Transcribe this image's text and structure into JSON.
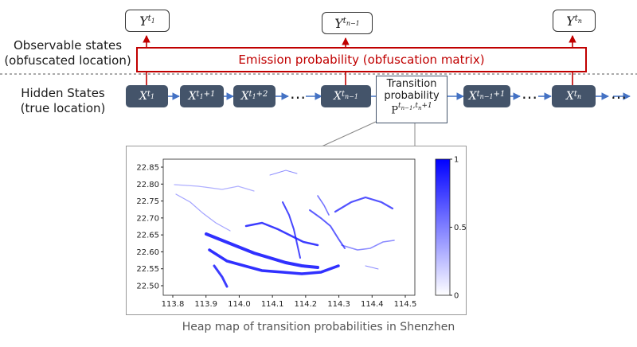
{
  "labels": {
    "observable_line1": "Observable states",
    "observable_line2": "(obfuscated location)",
    "hidden_line1": "Hidden States",
    "hidden_line2": "(true location)"
  },
  "observed": [
    {
      "var": "Y",
      "sup": "t",
      "sub": "1"
    },
    {
      "var": "Y",
      "sup": "t",
      "sub": "n−1"
    },
    {
      "var": "Y",
      "sup": "t",
      "sub": "n"
    }
  ],
  "hidden": [
    {
      "var": "X",
      "sup": "t",
      "sub": "1",
      "suffix": ""
    },
    {
      "var": "X",
      "sup": "t",
      "sub": "1",
      "suffix": "+1"
    },
    {
      "var": "X",
      "sup": "t",
      "sub": "1",
      "suffix": "+2"
    },
    {
      "var": "X",
      "sup": "t",
      "sub": "n−1",
      "suffix": ""
    },
    {
      "var": "X",
      "sup": "t",
      "sub": "n−1",
      "suffix": "+1"
    },
    {
      "var": "X",
      "sup": "t",
      "sub": "n",
      "suffix": ""
    }
  ],
  "ellipsis": "…",
  "emission": "Emission probability (obfuscation matrix)",
  "transition": {
    "line1": "Transition",
    "line2": "probability",
    "symbol": "P",
    "sup": "t",
    "sup_sub1": "n−1",
    "sup_mid": ",t",
    "sup_sub2": "n",
    "sup_tail": "+1"
  },
  "heatmap": {
    "x_ticks": [
      "113.8",
      "113.9",
      "114.0",
      "114.1",
      "114.2",
      "114.3",
      "114.4",
      "114.5"
    ],
    "y_ticks": [
      "22.85",
      "22.80",
      "22.75",
      "22.70",
      "22.65",
      "22.60",
      "22.55",
      "22.50"
    ],
    "colorbar_ticks": [
      "1",
      "0.5",
      "0"
    ],
    "colors": {
      "high": "#0000ff",
      "low": "#ffffff"
    }
  },
  "caption": "Heap map of transition probabilities in Shenzhen"
}
